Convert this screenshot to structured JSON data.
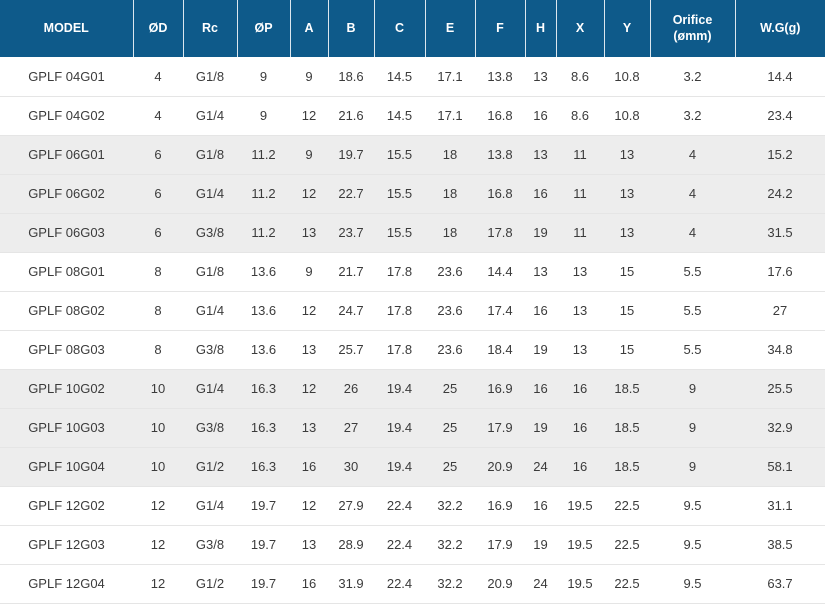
{
  "colors": {
    "header_bg": "#0e5a8a",
    "header_text": "#ffffff",
    "row_bg": "#ffffff",
    "row_alt_bg": "#ededed",
    "row_border": "#e5e5e5",
    "body_text": "#3b3b3b"
  },
  "table": {
    "columns": [
      {
        "key": "model",
        "label": "MODEL"
      },
      {
        "key": "od",
        "label": "ØD"
      },
      {
        "key": "rc",
        "label": "Rc"
      },
      {
        "key": "op",
        "label": "ØP"
      },
      {
        "key": "a",
        "label": "A"
      },
      {
        "key": "b",
        "label": "B"
      },
      {
        "key": "c",
        "label": "C"
      },
      {
        "key": "e",
        "label": "E"
      },
      {
        "key": "f",
        "label": "F"
      },
      {
        "key": "h",
        "label": "H"
      },
      {
        "key": "x",
        "label": "X"
      },
      {
        "key": "y",
        "label": "Y"
      },
      {
        "key": "orifice",
        "label": "Orifice (ømm)"
      },
      {
        "key": "wg",
        "label": "W.G(g)"
      }
    ],
    "rows": [
      {
        "shaded": false,
        "cells": [
          "GPLF 04G01",
          "4",
          "G1/8",
          "9",
          "9",
          "18.6",
          "14.5",
          "17.1",
          "13.8",
          "13",
          "8.6",
          "10.8",
          "3.2",
          "14.4"
        ]
      },
      {
        "shaded": false,
        "cells": [
          "GPLF 04G02",
          "4",
          "G1/4",
          "9",
          "12",
          "21.6",
          "14.5",
          "17.1",
          "16.8",
          "16",
          "8.6",
          "10.8",
          "3.2",
          "23.4"
        ]
      },
      {
        "shaded": true,
        "cells": [
          "GPLF 06G01",
          "6",
          "G1/8",
          "11.2",
          "9",
          "19.7",
          "15.5",
          "18",
          "13.8",
          "13",
          "11",
          "13",
          "4",
          "15.2"
        ]
      },
      {
        "shaded": true,
        "cells": [
          "GPLF 06G02",
          "6",
          "G1/4",
          "11.2",
          "12",
          "22.7",
          "15.5",
          "18",
          "16.8",
          "16",
          "11",
          "13",
          "4",
          "24.2"
        ]
      },
      {
        "shaded": true,
        "cells": [
          "GPLF 06G03",
          "6",
          "G3/8",
          "11.2",
          "13",
          "23.7",
          "15.5",
          "18",
          "17.8",
          "19",
          "11",
          "13",
          "4",
          "31.5"
        ]
      },
      {
        "shaded": false,
        "cells": [
          "GPLF 08G01",
          "8",
          "G1/8",
          "13.6",
          "9",
          "21.7",
          "17.8",
          "23.6",
          "14.4",
          "13",
          "13",
          "15",
          "5.5",
          "17.6"
        ]
      },
      {
        "shaded": false,
        "cells": [
          "GPLF 08G02",
          "8",
          "G1/4",
          "13.6",
          "12",
          "24.7",
          "17.8",
          "23.6",
          "17.4",
          "16",
          "13",
          "15",
          "5.5",
          "27"
        ]
      },
      {
        "shaded": false,
        "cells": [
          "GPLF 08G03",
          "8",
          "G3/8",
          "13.6",
          "13",
          "25.7",
          "17.8",
          "23.6",
          "18.4",
          "19",
          "13",
          "15",
          "5.5",
          "34.8"
        ]
      },
      {
        "shaded": true,
        "cells": [
          "GPLF 10G02",
          "10",
          "G1/4",
          "16.3",
          "12",
          "26",
          "19.4",
          "25",
          "16.9",
          "16",
          "16",
          "18.5",
          "9",
          "25.5"
        ]
      },
      {
        "shaded": true,
        "cells": [
          "GPLF 10G03",
          "10",
          "G3/8",
          "16.3",
          "13",
          "27",
          "19.4",
          "25",
          "17.9",
          "19",
          "16",
          "18.5",
          "9",
          "32.9"
        ]
      },
      {
        "shaded": true,
        "cells": [
          "GPLF 10G04",
          "10",
          "G1/2",
          "16.3",
          "16",
          "30",
          "19.4",
          "25",
          "20.9",
          "24",
          "16",
          "18.5",
          "9",
          "58.1"
        ]
      },
      {
        "shaded": false,
        "cells": [
          "GPLF 12G02",
          "12",
          "G1/4",
          "19.7",
          "12",
          "27.9",
          "22.4",
          "32.2",
          "16.9",
          "16",
          "19.5",
          "22.5",
          "9.5",
          "31.1"
        ]
      },
      {
        "shaded": false,
        "cells": [
          "GPLF 12G03",
          "12",
          "G3/8",
          "19.7",
          "13",
          "28.9",
          "22.4",
          "32.2",
          "17.9",
          "19",
          "19.5",
          "22.5",
          "9.5",
          "38.5"
        ]
      },
      {
        "shaded": false,
        "cells": [
          "GPLF 12G04",
          "12",
          "G1/2",
          "19.7",
          "16",
          "31.9",
          "22.4",
          "32.2",
          "20.9",
          "24",
          "19.5",
          "22.5",
          "9.5",
          "63.7"
        ]
      }
    ]
  }
}
